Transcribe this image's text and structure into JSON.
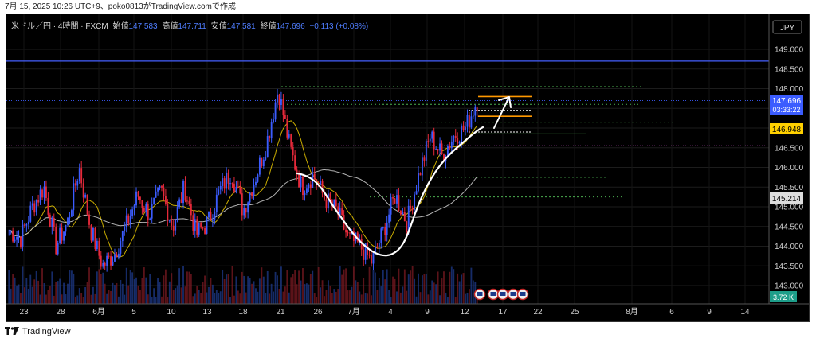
{
  "header": {
    "caption": "7月 15, 2025 10:26 UTC+9、poko0813がTradingView.comで作成"
  },
  "legend": {
    "symbol": "米ドル／円 · 4時間 · FXCM",
    "open_label": "始値",
    "open_value": "147.583",
    "high_label": "高値",
    "high_value": "147.711",
    "low_label": "安値",
    "low_value": "147.581",
    "close_label": "終値",
    "close_value": "147.696",
    "change": "+0.113 (+0.08%)"
  },
  "currency_button": "JPY",
  "price_tags": {
    "last_price": "147.696",
    "countdown": "03:33:22",
    "orange_level": "146.948",
    "ma_level": "145.214",
    "volume": "3.72 K"
  },
  "footer": {
    "brand": "TradingView"
  },
  "colors": {
    "up": "#3b5cff",
    "down": "#e5293a",
    "horizontal_line": "#4660ff",
    "pink_line": "#c850c8",
    "green_levels": "#4caf50",
    "orange_levels": "#ff9800",
    "ma_short": "#e0c000",
    "ma_long": "#c8c8c8"
  },
  "chart_data": {
    "type": "line",
    "ylim": [
      142.8,
      149.6
    ],
    "y_ticks": [
      "149.000",
      "148.500",
      "148.000",
      "147.500",
      "147.000",
      "146.500",
      "146.000",
      "145.500",
      "145.000",
      "144.500",
      "144.000",
      "143.500",
      "143.000"
    ],
    "x_ticks": [
      "23",
      "28",
      "6月",
      "5",
      "10",
      "13",
      "18",
      "21",
      "26",
      "7月",
      "4",
      "9",
      "12",
      "17",
      "22",
      "25",
      "8月",
      "6",
      "9",
      "14"
    ],
    "close_path": [
      144.4,
      144.2,
      145.0,
      145.5,
      144.0,
      144.6,
      146.0,
      144.4,
      143.5,
      143.8,
      144.5,
      145.3,
      144.8,
      145.4,
      144.5,
      145.5,
      144.3,
      144.6,
      145.4,
      145.9,
      144.9,
      145.7,
      146.6,
      148.0,
      146.5,
      145.5,
      145.8,
      145.2,
      144.9,
      144.2,
      144.0,
      143.6,
      144.4,
      145.3,
      144.6,
      145.8,
      146.8,
      146.3,
      146.8,
      147.0,
      147.7
    ],
    "horizontal_level": 148.7,
    "pink_level": 146.55,
    "green_levels": [
      148.05,
      147.6,
      147.15,
      145.75,
      145.25
    ],
    "green_solid_level": 146.85,
    "orange_levels": [
      147.8,
      147.3
    ],
    "white_levels": [
      147.45,
      146.9
    ]
  }
}
